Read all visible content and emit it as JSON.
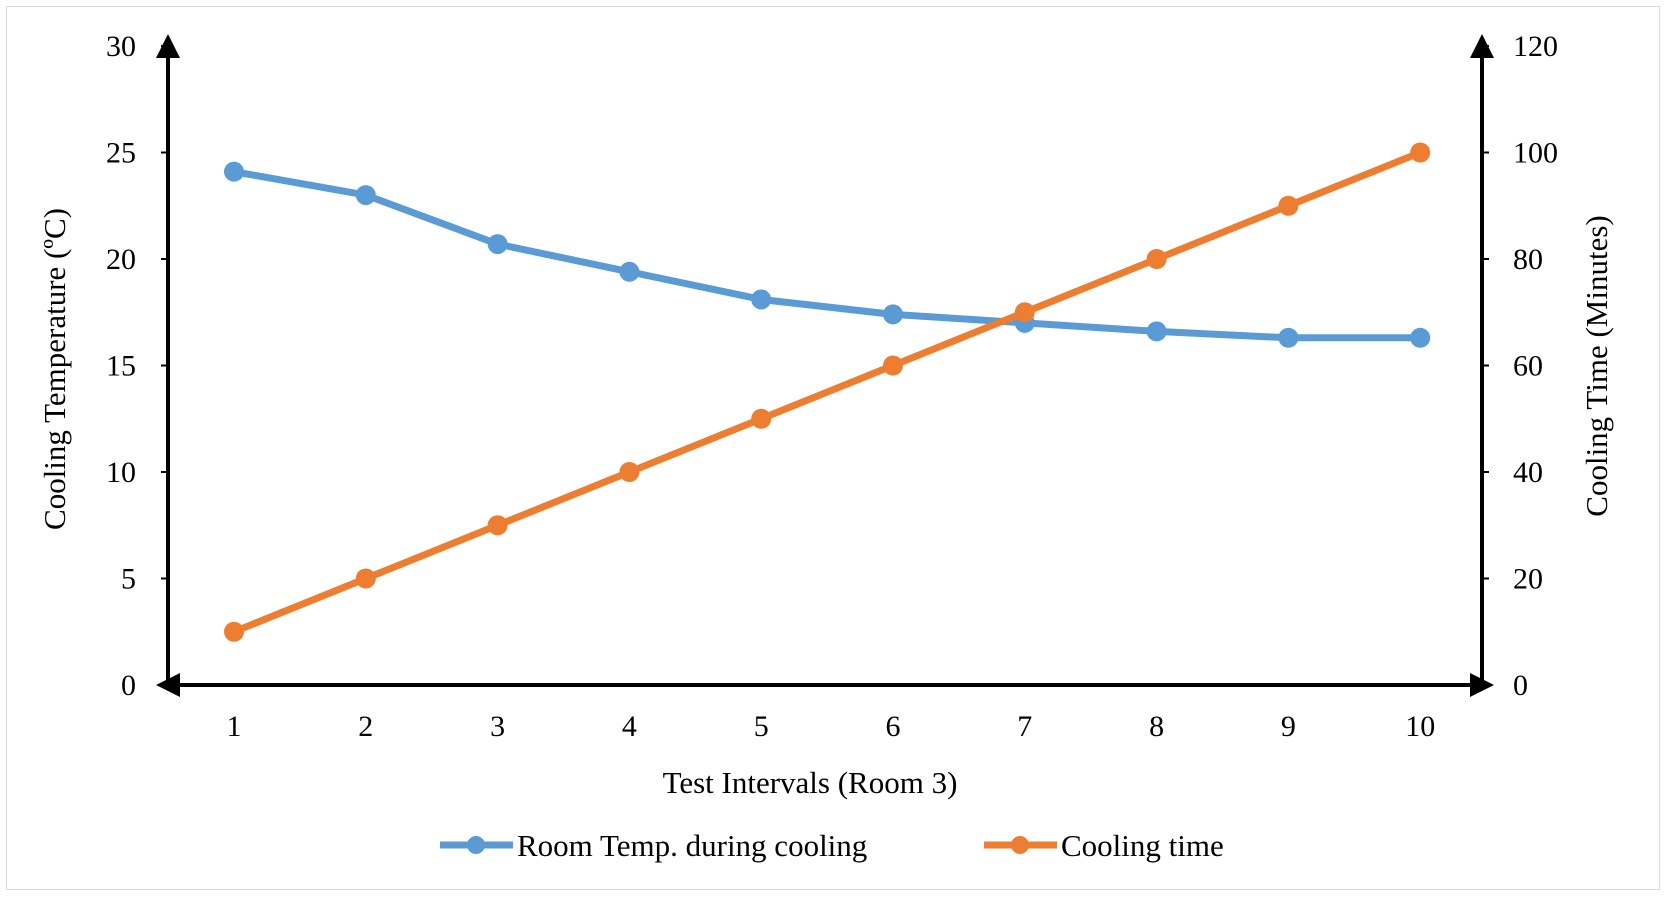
{
  "chart_data": {
    "type": "line",
    "title": "",
    "xlabel": "Test Intervals (Room 3)",
    "ylabel_left": "Cooling Temperature (ºC)",
    "ylabel_right": "Cooling Time (Minutes)",
    "x": [
      1,
      2,
      3,
      4,
      5,
      6,
      7,
      8,
      9,
      10
    ],
    "x_tick_labels": [
      "1",
      "2",
      "3",
      "4",
      "5",
      "6",
      "7",
      "8",
      "9",
      "10"
    ],
    "ylim_left": [
      0,
      30
    ],
    "ylim_right": [
      0,
      120
    ],
    "y_ticks_left": [
      "0",
      "5",
      "10",
      "15",
      "20",
      "25",
      "30"
    ],
    "y_ticks_right": [
      "0",
      "20",
      "40",
      "60",
      "80",
      "100",
      "120"
    ],
    "grid": false,
    "legend_position": "bottom",
    "series": [
      {
        "name": "Room Temp. during cooling",
        "axis": "left",
        "color": "#5b9bd5",
        "values": [
          24.1,
          23.0,
          20.7,
          19.4,
          18.1,
          17.4,
          17.0,
          16.6,
          16.3,
          16.3
        ]
      },
      {
        "name": "Cooling time",
        "axis": "right",
        "color": "#ed7d31",
        "values": [
          10,
          20,
          30,
          40,
          50,
          60,
          70,
          80,
          90,
          100
        ]
      }
    ]
  }
}
